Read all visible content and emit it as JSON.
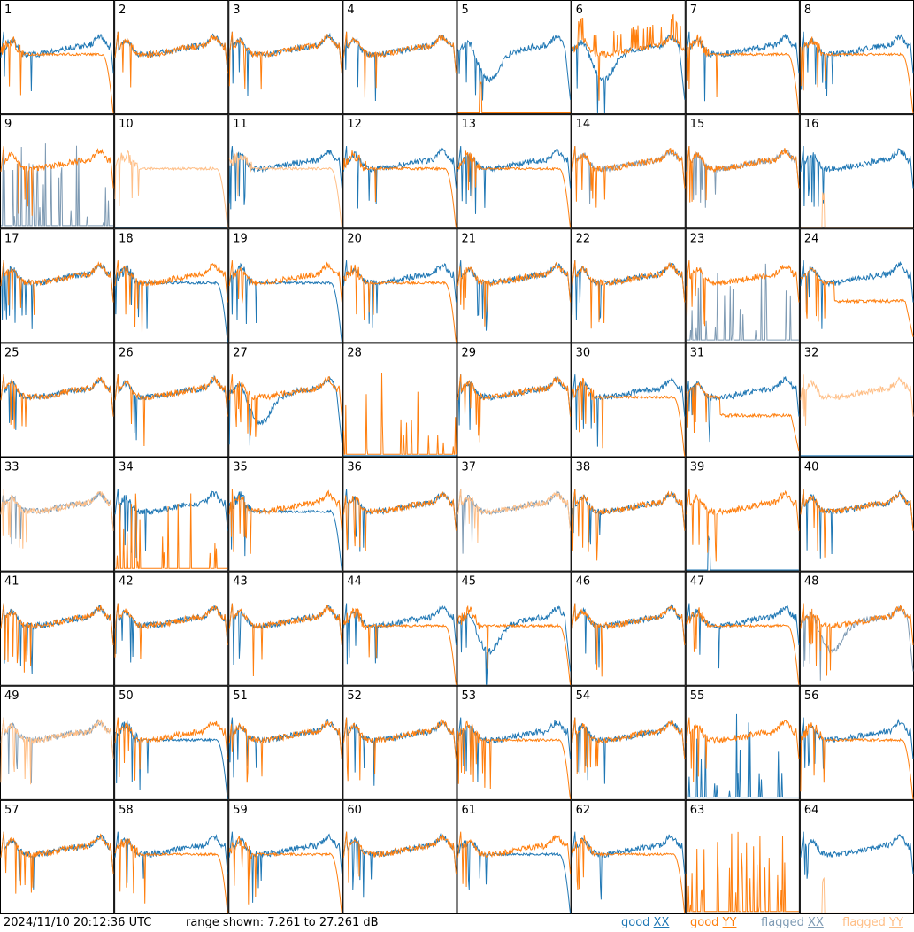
{
  "footer": {
    "timestamp": "2024/11/10 20:12:36 UTC",
    "range_label": "range shown: 7.261 to 27.261 dB"
  },
  "legend": [
    {
      "prefix": "good ",
      "suffix": "XX",
      "color": "#1f77b4"
    },
    {
      "prefix": "good ",
      "suffix": "YY",
      "color": "#ff7f0e"
    },
    {
      "prefix": "flagged ",
      "suffix": "XX",
      "color": "#7f9bb4"
    },
    {
      "prefix": "flagged ",
      "suffix": "YY",
      "color": "#ffbf87"
    }
  ],
  "chart_data": {
    "type": "line",
    "layout": "8x8 grid of small-multiple spectra",
    "y_range_db": [
      7.261,
      27.261
    ],
    "series_names": [
      "good XX",
      "good YY",
      "flagged XX",
      "flagged YY"
    ],
    "panels": [
      {
        "label": "1",
        "profiles": {
          "xx": "band",
          "yy": "dropout"
        }
      },
      {
        "label": "2",
        "profiles": {
          "xx": "band",
          "yy": "band"
        }
      },
      {
        "label": "3",
        "profiles": {
          "xx": "band",
          "yy": "band"
        }
      },
      {
        "label": "4",
        "profiles": {
          "xx": "band",
          "yy": "band"
        }
      },
      {
        "label": "5",
        "profiles": {
          "xx": "dip",
          "yy": "flat_spike"
        }
      },
      {
        "label": "6",
        "profiles": {
          "xx": "dip",
          "yy": "spiky_high"
        }
      },
      {
        "label": "7",
        "profiles": {
          "xx": "band",
          "yy": "dropout"
        }
      },
      {
        "label": "8",
        "profiles": {
          "xx": "band",
          "yy": "dropout"
        }
      },
      {
        "label": "9",
        "profiles": {
          "xx": "flag_noise",
          "yy": "band"
        },
        "flagged": {
          "xx": true
        }
      },
      {
        "label": "10",
        "profiles": {
          "xx": "flat_zero",
          "yy": "dropout"
        },
        "flagged": {
          "yy": true
        }
      },
      {
        "label": "11",
        "profiles": {
          "xx": "band",
          "yy": "dropout"
        },
        "flagged": {
          "yy": true
        }
      },
      {
        "label": "12",
        "profiles": {
          "xx": "band",
          "yy": "dropout"
        }
      },
      {
        "label": "13",
        "profiles": {
          "xx": "band",
          "yy": "dropout"
        }
      },
      {
        "label": "14",
        "profiles": {
          "xx": "band",
          "yy": "band"
        },
        "flagged": {
          "xx": true
        }
      },
      {
        "label": "15",
        "profiles": {
          "xx": "band",
          "yy": "band"
        },
        "flagged": {
          "xx": true
        }
      },
      {
        "label": "16",
        "profiles": {
          "xx": "band",
          "yy": "flat_spike"
        },
        "flagged": {
          "yy": true
        }
      },
      {
        "label": "17",
        "profiles": {
          "xx": "band",
          "yy": "band"
        }
      },
      {
        "label": "18",
        "profiles": {
          "xx": "dropout",
          "yy": "band"
        }
      },
      {
        "label": "19",
        "profiles": {
          "xx": "dropout",
          "yy": "band"
        }
      },
      {
        "label": "20",
        "profiles": {
          "xx": "band",
          "yy": "dropout"
        }
      },
      {
        "label": "21",
        "profiles": {
          "xx": "band",
          "yy": "band"
        }
      },
      {
        "label": "22",
        "profiles": {
          "xx": "band",
          "yy": "band"
        }
      },
      {
        "label": "23",
        "profiles": {
          "xx": "flag_noise",
          "yy": "band"
        },
        "flagged": {
          "xx": true
        }
      },
      {
        "label": "24",
        "profiles": {
          "xx": "band",
          "yy": "low"
        }
      },
      {
        "label": "25",
        "profiles": {
          "xx": "band",
          "yy": "band"
        }
      },
      {
        "label": "26",
        "profiles": {
          "xx": "band",
          "yy": "band"
        }
      },
      {
        "label": "27",
        "profiles": {
          "xx": "dip",
          "yy": "band"
        }
      },
      {
        "label": "28",
        "profiles": {
          "xx": "flat_zero",
          "yy": "flag_noise"
        }
      },
      {
        "label": "29",
        "profiles": {
          "xx": "band",
          "yy": "band"
        }
      },
      {
        "label": "30",
        "profiles": {
          "xx": "band",
          "yy": "dropout"
        }
      },
      {
        "label": "31",
        "profiles": {
          "xx": "band",
          "yy": "low"
        }
      },
      {
        "label": "32",
        "profiles": {
          "xx": "flat_zero",
          "yy": "band"
        },
        "flagged": {
          "yy": true
        }
      },
      {
        "label": "33",
        "profiles": {
          "xx": "band",
          "yy": "band"
        },
        "flagged": {
          "xx": true,
          "yy": true
        }
      },
      {
        "label": "34",
        "profiles": {
          "xx": "band",
          "yy": "flag_noise"
        }
      },
      {
        "label": "35",
        "profiles": {
          "xx": "dropout",
          "yy": "band"
        }
      },
      {
        "label": "36",
        "profiles": {
          "xx": "band",
          "yy": "band"
        }
      },
      {
        "label": "37",
        "profiles": {
          "xx": "band",
          "yy": "band"
        },
        "flagged": {
          "xx": true,
          "yy": true
        }
      },
      {
        "label": "38",
        "profiles": {
          "xx": "band",
          "yy": "band"
        }
      },
      {
        "label": "39",
        "profiles": {
          "xx": "flat_spike",
          "yy": "band"
        }
      },
      {
        "label": "40",
        "profiles": {
          "xx": "band",
          "yy": "band"
        }
      },
      {
        "label": "41",
        "profiles": {
          "xx": "band",
          "yy": "band"
        }
      },
      {
        "label": "42",
        "profiles": {
          "xx": "band",
          "yy": "band"
        }
      },
      {
        "label": "43",
        "profiles": {
          "xx": "band",
          "yy": "band"
        }
      },
      {
        "label": "44",
        "profiles": {
          "xx": "band",
          "yy": "dropout"
        }
      },
      {
        "label": "45",
        "profiles": {
          "xx": "dip",
          "yy": "dropout"
        }
      },
      {
        "label": "46",
        "profiles": {
          "xx": "band",
          "yy": "band"
        }
      },
      {
        "label": "47",
        "profiles": {
          "xx": "band",
          "yy": "dropout"
        }
      },
      {
        "label": "48",
        "profiles": {
          "xx": "dip",
          "yy": "band"
        },
        "flagged": {
          "xx": true
        }
      },
      {
        "label": "49",
        "profiles": {
          "xx": "band",
          "yy": "band"
        },
        "flagged": {
          "xx": true,
          "yy": true
        }
      },
      {
        "label": "50",
        "profiles": {
          "xx": "dropout",
          "yy": "band"
        }
      },
      {
        "label": "51",
        "profiles": {
          "xx": "band",
          "yy": "band"
        }
      },
      {
        "label": "52",
        "profiles": {
          "xx": "band",
          "yy": "band"
        }
      },
      {
        "label": "53",
        "profiles": {
          "xx": "band",
          "yy": "dropout"
        }
      },
      {
        "label": "54",
        "profiles": {
          "xx": "band",
          "yy": "band"
        }
      },
      {
        "label": "55",
        "profiles": {
          "xx": "flag_noise",
          "yy": "band"
        }
      },
      {
        "label": "56",
        "profiles": {
          "xx": "band",
          "yy": "dropout"
        }
      },
      {
        "label": "57",
        "profiles": {
          "xx": "band",
          "yy": "band"
        }
      },
      {
        "label": "58",
        "profiles": {
          "xx": "band",
          "yy": "dropout"
        }
      },
      {
        "label": "59",
        "profiles": {
          "xx": "band",
          "yy": "dropout"
        }
      },
      {
        "label": "60",
        "profiles": {
          "xx": "band",
          "yy": "band"
        }
      },
      {
        "label": "61",
        "profiles": {
          "xx": "dropout",
          "yy": "band"
        }
      },
      {
        "label": "62",
        "profiles": {
          "xx": "band",
          "yy": "dropout"
        }
      },
      {
        "label": "63",
        "profiles": {
          "xx": "flat_zero",
          "yy": "flag_noise"
        }
      },
      {
        "label": "64",
        "profiles": {
          "xx": "band",
          "yy": "flat_spike"
        },
        "flagged": {
          "yy": true
        }
      }
    ]
  }
}
